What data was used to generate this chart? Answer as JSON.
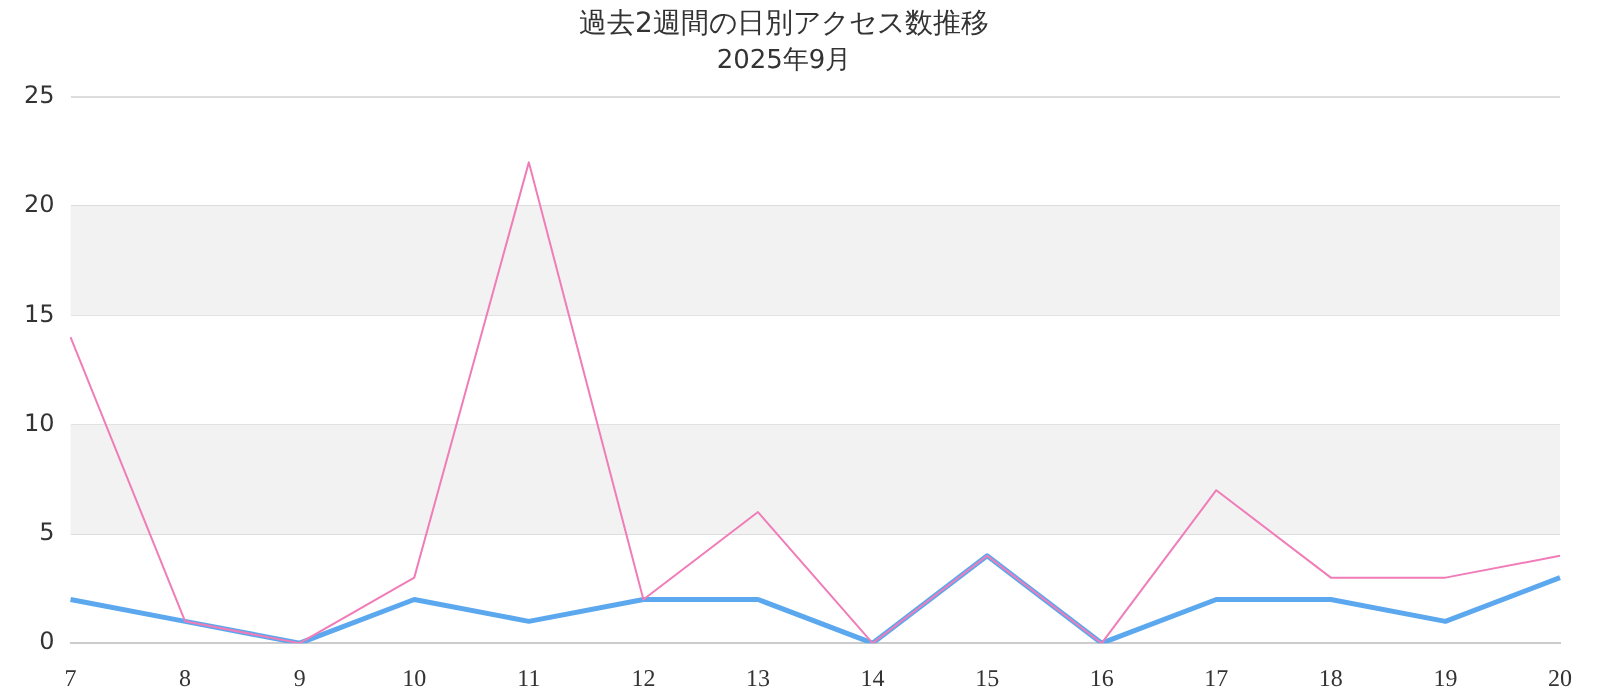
{
  "chart_data": {
    "type": "line",
    "title": "過去2週間の日別アクセス数推移",
    "subtitle": "2025年9月",
    "categories": [
      "7",
      "8",
      "9",
      "10",
      "11",
      "12",
      "13",
      "14",
      "15",
      "16",
      "17",
      "18",
      "19",
      "20"
    ],
    "series": [
      {
        "color": "#f07cb8",
        "values": [
          14,
          1,
          0,
          3,
          22,
          2,
          6,
          0,
          4,
          0,
          7,
          3,
          3,
          4
        ]
      },
      {
        "color": "#5ca8ee",
        "values": [
          2,
          1,
          0,
          2,
          1,
          2,
          2,
          0,
          4,
          0,
          2,
          2,
          1,
          3
        ]
      }
    ],
    "ylim": [
      0,
      25
    ],
    "yticks": [
      0,
      5,
      10,
      15,
      20,
      25
    ],
    "grid": "y",
    "legend": false,
    "marker": "none",
    "line_style": "solid",
    "bands": [
      {
        "axis": "y",
        "from": 5,
        "to": 10,
        "color": "#f2f2f2"
      },
      {
        "axis": "y",
        "from": 15,
        "to": 20,
        "color": "#f2f2f2"
      }
    ]
  }
}
